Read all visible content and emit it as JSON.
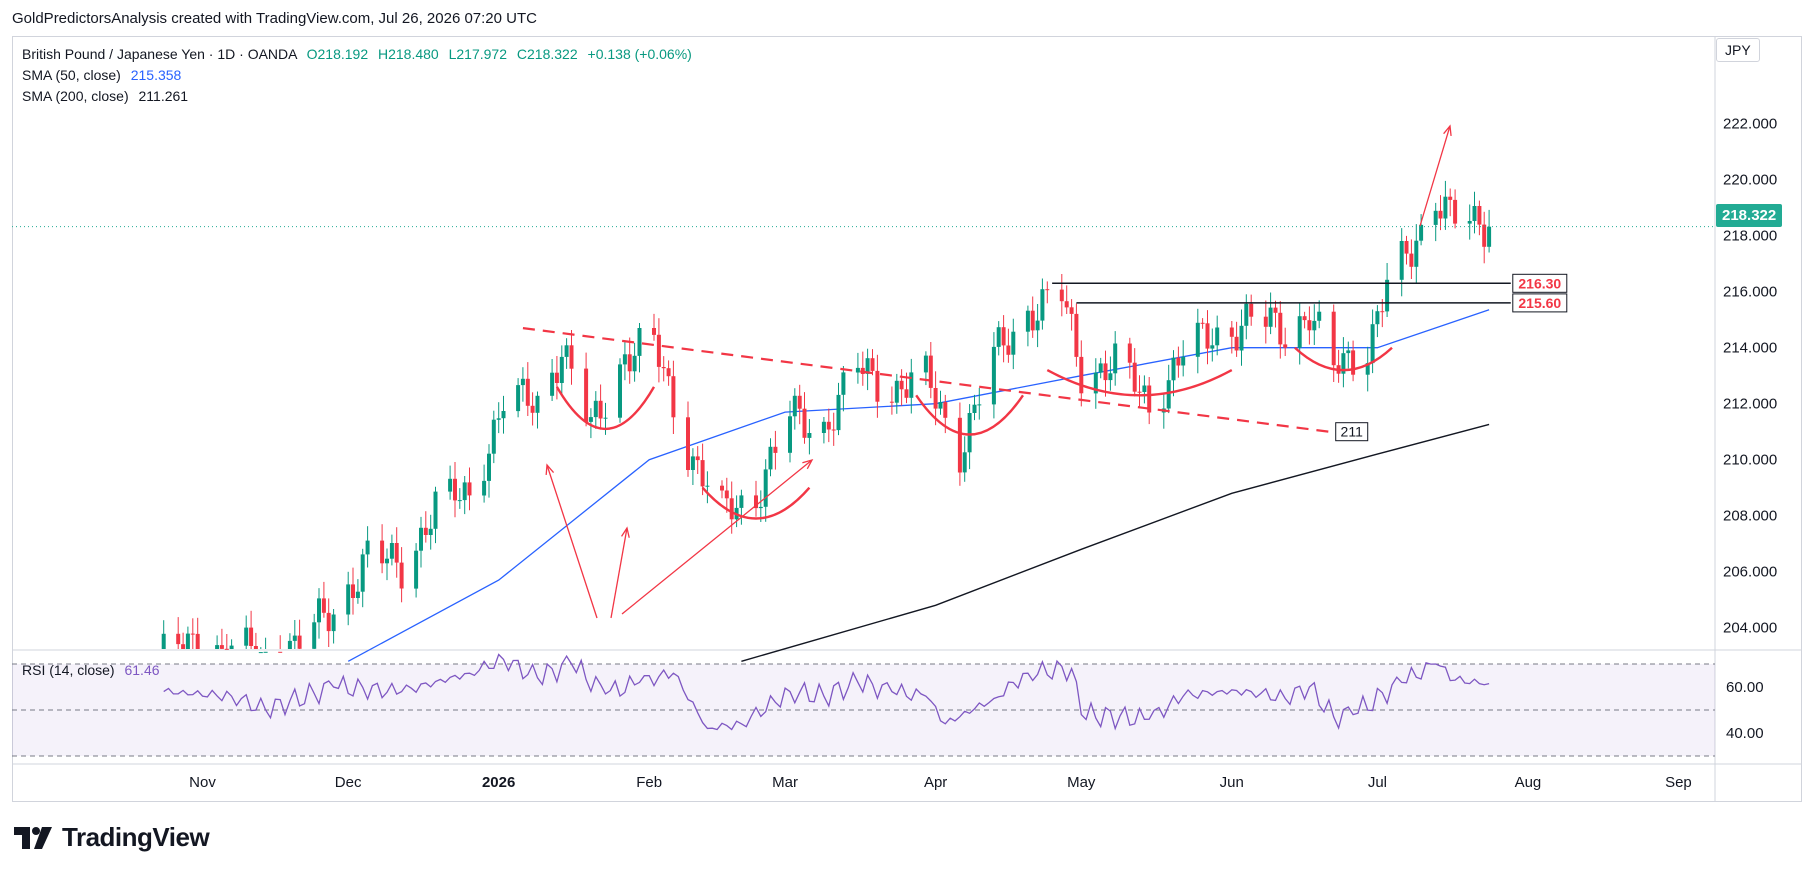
{
  "header": {
    "caption": "GoldPredictorsAnalysis created with TradingView.com, Jul 26, 2026 07:20 UTC"
  },
  "legend": {
    "instrument": "British Pound / Japanese Yen · 1D · OANDA",
    "open": "O218.192",
    "high": "H218.480",
    "low": "L217.972",
    "close": "C218.322",
    "change": "+0.138 (+0.06%)",
    "sma50_label": "SMA (50, close)",
    "sma50_value": "215.358",
    "sma200_label": "SMA (200, close)",
    "sma200_value": "211.261"
  },
  "rsi_legend": {
    "label": "RSI (14, close)",
    "value": "61.46"
  },
  "currency": "JPY",
  "last_price": "218.322",
  "footer": {
    "brand": "TradingView"
  },
  "colors": {
    "up": "#089981",
    "down": "#f23645",
    "sma50": "#2962ff",
    "sma200": "#131722",
    "rsi": "#7e57c2",
    "annotation": "#f23645",
    "price_tag": "#22ab94"
  },
  "chart_data": {
    "type": "candlestick",
    "title": "British Pound / Japanese Yen · 1D · OANDA",
    "ylim": [
      202.8,
      224.2
    ],
    "y_ticks": [
      "222.000",
      "220.000",
      "218.000",
      "216.000",
      "214.000",
      "212.000",
      "210.000",
      "208.000",
      "206.000",
      "204.000"
    ],
    "x_ticks": [
      "Nov",
      "Dec",
      "2026",
      "Feb",
      "Mar",
      "Apr",
      "May",
      "Jun",
      "Jul",
      "Aug",
      "Sep"
    ],
    "close_series": [
      [
        "2025-10-24",
        203.0
      ],
      [
        "2025-10-31",
        203.4
      ],
      [
        "2025-11-07",
        203.2
      ],
      [
        "2025-11-14",
        202.9
      ],
      [
        "2025-11-21",
        203.5
      ],
      [
        "2025-11-28",
        204.6
      ],
      [
        "2025-12-05",
        206.5
      ],
      [
        "2025-12-12",
        206.2
      ],
      [
        "2025-12-19",
        208.3
      ],
      [
        "2025-12-26",
        208.8
      ],
      [
        "2026-01-02",
        212.0
      ],
      [
        "2026-01-09",
        212.1
      ],
      [
        "2026-01-14",
        214.0
      ],
      [
        "2026-01-20",
        211.0
      ],
      [
        "2026-01-27",
        213.8
      ],
      [
        "2026-02-02",
        214.0
      ],
      [
        "2026-02-09",
        210.5
      ],
      [
        "2026-02-16",
        208.0
      ],
      [
        "2026-02-23",
        208.8
      ],
      [
        "2026-03-02",
        211.5
      ],
      [
        "2026-03-09",
        211.2
      ],
      [
        "2026-03-16",
        213.2
      ],
      [
        "2026-03-23",
        212.6
      ],
      [
        "2026-03-30",
        212.8
      ],
      [
        "2026-04-06",
        210.4
      ],
      [
        "2026-04-13",
        213.6
      ],
      [
        "2026-04-20",
        215.3
      ],
      [
        "2026-04-27",
        215.8
      ],
      [
        "2026-05-01",
        213.2
      ],
      [
        "2026-05-08",
        213.4
      ],
      [
        "2026-05-15",
        212.0
      ],
      [
        "2026-05-22",
        213.8
      ],
      [
        "2026-05-29",
        214.5
      ],
      [
        "2026-06-05",
        215.0
      ],
      [
        "2026-06-12",
        214.6
      ],
      [
        "2026-06-17",
        215.3
      ],
      [
        "2026-06-22",
        213.1
      ],
      [
        "2026-06-29",
        214.2
      ],
      [
        "2026-07-03",
        216.2
      ],
      [
        "2026-07-08",
        217.3
      ],
      [
        "2026-07-13",
        219.6
      ],
      [
        "2026-07-17",
        218.6
      ],
      [
        "2026-07-21",
        218.2
      ],
      [
        "2026-07-24",
        218.322
      ]
    ],
    "sma50": [
      [
        "2025-12-01",
        202.8
      ],
      [
        "2026-01-01",
        205.7
      ],
      [
        "2026-02-01",
        210.0
      ],
      [
        "2026-03-01",
        211.7
      ],
      [
        "2026-04-01",
        212.0
      ],
      [
        "2026-05-01",
        213.0
      ],
      [
        "2026-06-01",
        214.0
      ],
      [
        "2026-07-01",
        214.0
      ],
      [
        "2026-07-24",
        215.358
      ]
    ],
    "sma200": [
      [
        "2026-02-20",
        202.8
      ],
      [
        "2026-04-01",
        204.8
      ],
      [
        "2026-05-01",
        206.8
      ],
      [
        "2026-06-01",
        208.8
      ],
      [
        "2026-07-01",
        210.2
      ],
      [
        "2026-07-24",
        211.261
      ]
    ],
    "levels": [
      {
        "label": "216.30",
        "value": 216.3
      },
      {
        "label": "215.60",
        "value": 215.6
      }
    ],
    "trendline_label": "211",
    "rsi": {
      "ylim": [
        30,
        75
      ],
      "y_ticks": [
        "60.00",
        "40.00"
      ],
      "levels": [
        70,
        50,
        30
      ],
      "values": [
        [
          "2025-10-24",
          58
        ],
        [
          "2025-11-07",
          56
        ],
        [
          "2025-11-14",
          50
        ],
        [
          "2025-11-28",
          60
        ],
        [
          "2025-12-12",
          58
        ],
        [
          "2025-12-26",
          66
        ],
        [
          "2026-01-02",
          72
        ],
        [
          "2026-01-09",
          64
        ],
        [
          "2026-01-16",
          70
        ],
        [
          "2026-01-23",
          57
        ],
        [
          "2026-01-30",
          62
        ],
        [
          "2026-02-06",
          66
        ],
        [
          "2026-02-13",
          42
        ],
        [
          "2026-02-20",
          44
        ],
        [
          "2026-03-02",
          58
        ],
        [
          "2026-03-09",
          56
        ],
        [
          "2026-03-16",
          62
        ],
        [
          "2026-03-23",
          58
        ],
        [
          "2026-03-30",
          56
        ],
        [
          "2026-04-03",
          44
        ],
        [
          "2026-04-13",
          55
        ],
        [
          "2026-04-20",
          66
        ],
        [
          "2026-04-29",
          68
        ],
        [
          "2026-05-01",
          48
        ],
        [
          "2026-05-15",
          46
        ],
        [
          "2026-05-22",
          56
        ],
        [
          "2026-05-29",
          58
        ],
        [
          "2026-06-05",
          58
        ],
        [
          "2026-06-12",
          55
        ],
        [
          "2026-06-17",
          60
        ],
        [
          "2026-06-22",
          47
        ],
        [
          "2026-06-26",
          48
        ],
        [
          "2026-07-06",
          62
        ],
        [
          "2026-07-13",
          70
        ],
        [
          "2026-07-17",
          63
        ],
        [
          "2026-07-24",
          61.46
        ]
      ]
    }
  }
}
